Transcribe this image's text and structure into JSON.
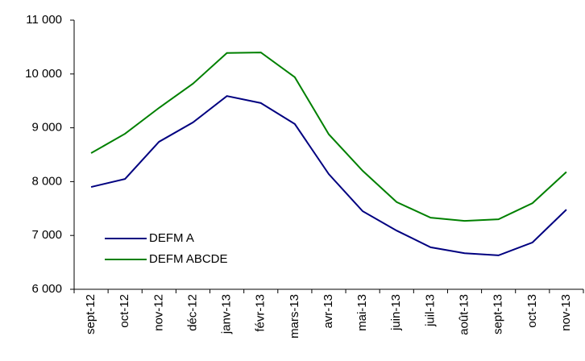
{
  "chart_data": {
    "type": "line",
    "categories": [
      "sept-12",
      "oct-12",
      "nov-12",
      "déc-12",
      "janv-13",
      "févr-13",
      "mars-13",
      "avr-13",
      "mai-13",
      "juin-13",
      "juil-13",
      "août-13",
      "sept-13",
      "oct-13",
      "nov-13"
    ],
    "series": [
      {
        "name": "DEFM A",
        "color": "#000080",
        "values": [
          7900,
          8050,
          8740,
          9100,
          9590,
          9460,
          9070,
          8140,
          7450,
          7090,
          6780,
          6670,
          6630,
          6870,
          7480
        ]
      },
      {
        "name": "DEFM ABCDE",
        "color": "#008000",
        "values": [
          8530,
          8890,
          9370,
          9820,
          10390,
          10400,
          9940,
          8880,
          8200,
          7620,
          7330,
          7270,
          7300,
          7600,
          8180
        ]
      }
    ],
    "ylim": [
      6000,
      11000
    ],
    "yticks": [
      {
        "value": 6000,
        "label": "6 000"
      },
      {
        "value": 7000,
        "label": "7 000"
      },
      {
        "value": 8000,
        "label": "8 000"
      },
      {
        "value": 9000,
        "label": "9 000"
      },
      {
        "value": 10000,
        "label": "10 000"
      },
      {
        "value": 11000,
        "label": "11 000"
      }
    ]
  }
}
